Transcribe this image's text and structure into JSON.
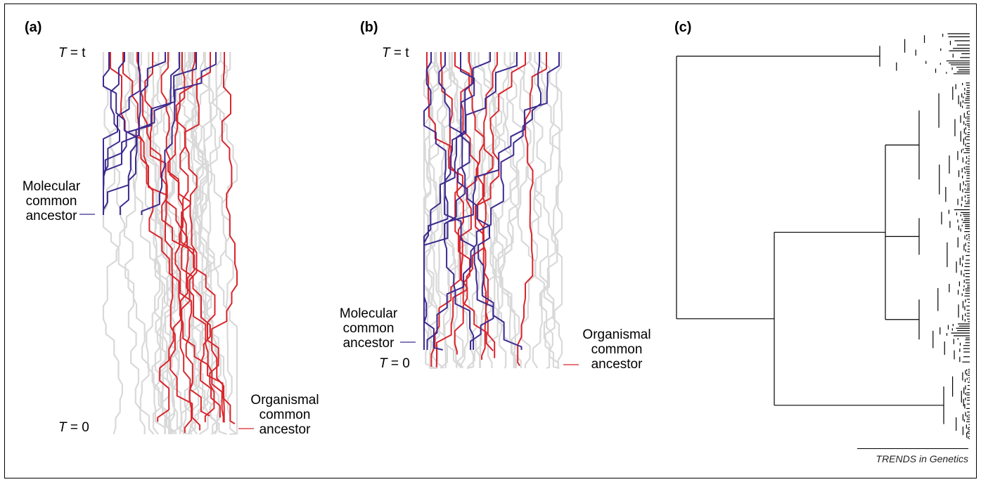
{
  "panels": {
    "a": {
      "label": "(a)",
      "t_top": "t",
      "t_bottom": "0",
      "molecular": [
        "Molecular",
        "common",
        "ancestor"
      ],
      "organismal": [
        "Organismal",
        "common",
        "ancestor"
      ]
    },
    "b": {
      "label": "(b)",
      "t_top": "t",
      "t_bottom": "0",
      "molecular": [
        "Molecular",
        "common",
        "ancestor"
      ],
      "organismal": [
        "Organismal",
        "common",
        "ancestor"
      ]
    },
    "c": {
      "label": "(c)"
    }
  },
  "common": {
    "t_symbol": "T",
    "equals": " = "
  },
  "colors": {
    "molecular": "#3d2a8f",
    "organismal": "#d8262c",
    "background_lineage": "#d9d9d9",
    "tree": "#000000"
  },
  "credit": "TRENDS in Genetics"
}
